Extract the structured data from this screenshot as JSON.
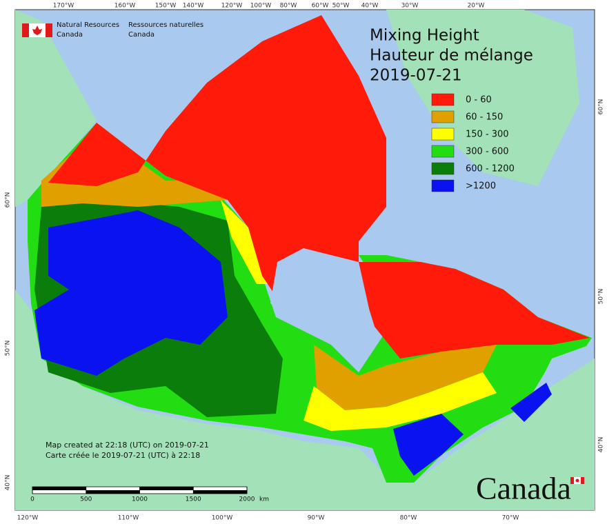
{
  "header": {
    "agency_en": [
      "Natural Resources",
      "Canada"
    ],
    "agency_fr": [
      "Ressources naturelles",
      "Canada"
    ]
  },
  "title": [
    "Mixing Height",
    "Hauteur de mélange",
    "2019-07-21"
  ],
  "legend": [
    {
      "label": "0 - 60",
      "color": "#ff1a0a"
    },
    {
      "label": "60 - 150",
      "color": "#e0a000"
    },
    {
      "label": "150 - 300",
      "color": "#ffff00"
    },
    {
      "label": "300 - 600",
      "color": "#22dd11"
    },
    {
      "label": "600 - 1200",
      "color": "#0b7d0b"
    },
    {
      "label": ">1200",
      "color": "#0a12f0"
    }
  ],
  "graticule": {
    "top": [
      "170°W",
      "160°W",
      "150°W",
      "140°W",
      "120°W",
      "100°W",
      "80°W",
      "60°W",
      "50°W",
      "40°W",
      "30°W",
      "20°W"
    ],
    "bottom": [
      "120°W",
      "110°W",
      "100°W",
      "90°W",
      "80°W",
      "70°W"
    ],
    "left": [
      "60°N",
      "50°N",
      "40°N"
    ],
    "right": [
      "60°N",
      "50°N",
      "40°N"
    ]
  },
  "footer": [
    "Map created at 22:18 (UTC) on 2019-07-21",
    "Carte créée le 2019-07-21 (UTC) à 22:18"
  ],
  "scale_bar": {
    "ticks": [
      0,
      500,
      1000,
      1500,
      2000
    ],
    "unit": "km"
  },
  "wordmark": "Canada"
}
